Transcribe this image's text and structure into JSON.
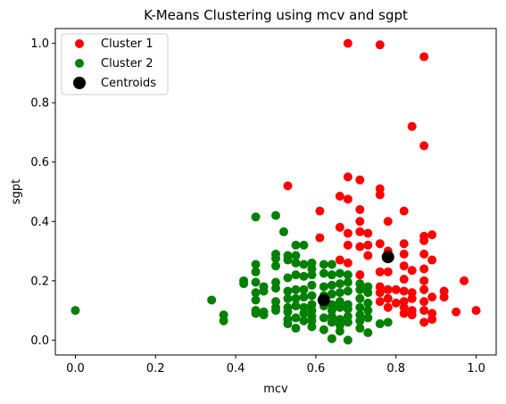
{
  "chart_data": {
    "type": "scatter",
    "title": "K-Means Clustering using mcv and sgpt",
    "xlabel": "mcv",
    "ylabel": "sgpt",
    "xlim": [
      -0.05,
      1.05
    ],
    "ylim": [
      -0.05,
      1.05
    ],
    "xticks": [
      0.0,
      0.2,
      0.4,
      0.6,
      0.8,
      1.0
    ],
    "xtick_labels": [
      "0.0",
      "0.2",
      "0.4",
      "0.6",
      "0.8",
      "1.0"
    ],
    "yticks": [
      0.0,
      0.2,
      0.4,
      0.6,
      0.8,
      1.0
    ],
    "ytick_labels": [
      "0.0",
      "0.2",
      "0.4",
      "0.6",
      "0.8",
      "1.0"
    ],
    "grid": false,
    "legend_position": "top-left",
    "series": [
      {
        "name": "Cluster 1",
        "color": "#ff0000",
        "points": [
          [
            0.68,
            1.0
          ],
          [
            0.76,
            0.995
          ],
          [
            0.87,
            0.955
          ],
          [
            0.84,
            0.72
          ],
          [
            0.87,
            0.655
          ],
          [
            0.53,
            0.52
          ],
          [
            0.68,
            0.55
          ],
          [
            0.71,
            0.54
          ],
          [
            0.66,
            0.485
          ],
          [
            0.68,
            0.475
          ],
          [
            0.76,
            0.51
          ],
          [
            0.76,
            0.49
          ],
          [
            0.71,
            0.44
          ],
          [
            0.61,
            0.435
          ],
          [
            0.82,
            0.435
          ],
          [
            0.71,
            0.4
          ],
          [
            0.78,
            0.4
          ],
          [
            0.66,
            0.38
          ],
          [
            0.61,
            0.345
          ],
          [
            0.68,
            0.36
          ],
          [
            0.71,
            0.365
          ],
          [
            0.73,
            0.36
          ],
          [
            0.87,
            0.35
          ],
          [
            0.89,
            0.355
          ],
          [
            0.68,
            0.32
          ],
          [
            0.71,
            0.315
          ],
          [
            0.73,
            0.32
          ],
          [
            0.76,
            0.325
          ],
          [
            0.82,
            0.325
          ],
          [
            0.87,
            0.335
          ],
          [
            0.66,
            0.27
          ],
          [
            0.68,
            0.26
          ],
          [
            0.73,
            0.285
          ],
          [
            0.78,
            0.3
          ],
          [
            0.82,
            0.29
          ],
          [
            0.87,
            0.29
          ],
          [
            0.89,
            0.27
          ],
          [
            0.71,
            0.22
          ],
          [
            0.76,
            0.23
          ],
          [
            0.78,
            0.23
          ],
          [
            0.82,
            0.25
          ],
          [
            0.84,
            0.235
          ],
          [
            0.87,
            0.24
          ],
          [
            0.82,
            0.205
          ],
          [
            0.87,
            0.2
          ],
          [
            0.97,
            0.2
          ],
          [
            0.76,
            0.18
          ],
          [
            0.76,
            0.16
          ],
          [
            0.78,
            0.17
          ],
          [
            0.8,
            0.17
          ],
          [
            0.82,
            0.165
          ],
          [
            0.84,
            0.16
          ],
          [
            0.87,
            0.17
          ],
          [
            0.89,
            0.145
          ],
          [
            0.92,
            0.165
          ],
          [
            0.92,
            0.145
          ],
          [
            0.76,
            0.13
          ],
          [
            0.78,
            0.14
          ],
          [
            0.8,
            0.125
          ],
          [
            0.82,
            0.13
          ],
          [
            0.84,
            0.14
          ],
          [
            0.87,
            0.13
          ],
          [
            0.78,
            0.11
          ],
          [
            0.82,
            0.11
          ],
          [
            0.84,
            0.1
          ],
          [
            0.82,
            0.09
          ],
          [
            0.87,
            0.1
          ],
          [
            0.89,
            0.09
          ],
          [
            0.95,
            0.095
          ],
          [
            1.0,
            0.1
          ],
          [
            0.84,
            0.085
          ],
          [
            0.87,
            0.06
          ],
          [
            0.89,
            0.07
          ]
        ]
      },
      {
        "name": "Cluster 2",
        "color": "#008000",
        "points": [
          [
            0.0,
            0.1
          ],
          [
            0.34,
            0.135
          ],
          [
            0.37,
            0.085
          ],
          [
            0.37,
            0.065
          ],
          [
            0.45,
            0.415
          ],
          [
            0.5,
            0.42
          ],
          [
            0.52,
            0.365
          ],
          [
            0.55,
            0.32
          ],
          [
            0.57,
            0.32
          ],
          [
            0.5,
            0.29
          ],
          [
            0.5,
            0.275
          ],
          [
            0.53,
            0.285
          ],
          [
            0.53,
            0.27
          ],
          [
            0.55,
            0.285
          ],
          [
            0.45,
            0.255
          ],
          [
            0.45,
            0.23
          ],
          [
            0.5,
            0.25
          ],
          [
            0.55,
            0.26
          ],
          [
            0.57,
            0.255
          ],
          [
            0.59,
            0.26
          ],
          [
            0.59,
            0.24
          ],
          [
            0.62,
            0.255
          ],
          [
            0.64,
            0.255
          ],
          [
            0.42,
            0.2
          ],
          [
            0.42,
            0.19
          ],
          [
            0.45,
            0.195
          ],
          [
            0.47,
            0.18
          ],
          [
            0.5,
            0.195
          ],
          [
            0.53,
            0.21
          ],
          [
            0.55,
            0.22
          ],
          [
            0.57,
            0.215
          ],
          [
            0.59,
            0.22
          ],
          [
            0.62,
            0.225
          ],
          [
            0.64,
            0.22
          ],
          [
            0.66,
            0.225
          ],
          [
            0.68,
            0.22
          ],
          [
            0.45,
            0.16
          ],
          [
            0.47,
            0.165
          ],
          [
            0.5,
            0.175
          ],
          [
            0.53,
            0.165
          ],
          [
            0.55,
            0.17
          ],
          [
            0.57,
            0.17
          ],
          [
            0.59,
            0.185
          ],
          [
            0.62,
            0.18
          ],
          [
            0.64,
            0.185
          ],
          [
            0.66,
            0.19
          ],
          [
            0.68,
            0.195
          ],
          [
            0.71,
            0.19
          ],
          [
            0.45,
            0.135
          ],
          [
            0.5,
            0.13
          ],
          [
            0.53,
            0.14
          ],
          [
            0.55,
            0.14
          ],
          [
            0.57,
            0.145
          ],
          [
            0.59,
            0.15
          ],
          [
            0.62,
            0.15
          ],
          [
            0.64,
            0.155
          ],
          [
            0.66,
            0.16
          ],
          [
            0.68,
            0.165
          ],
          [
            0.71,
            0.17
          ],
          [
            0.73,
            0.16
          ],
          [
            0.73,
            0.18
          ],
          [
            0.45,
            0.1
          ],
          [
            0.45,
            0.09
          ],
          [
            0.47,
            0.095
          ],
          [
            0.47,
            0.085
          ],
          [
            0.5,
            0.11
          ],
          [
            0.5,
            0.1
          ],
          [
            0.53,
            0.11
          ],
          [
            0.53,
            0.095
          ],
          [
            0.55,
            0.115
          ],
          [
            0.57,
            0.11
          ],
          [
            0.57,
            0.09
          ],
          [
            0.59,
            0.12
          ],
          [
            0.59,
            0.1
          ],
          [
            0.62,
            0.115
          ],
          [
            0.64,
            0.12
          ],
          [
            0.64,
            0.1
          ],
          [
            0.66,
            0.13
          ],
          [
            0.66,
            0.11
          ],
          [
            0.68,
            0.12
          ],
          [
            0.68,
            0.105
          ],
          [
            0.71,
            0.14
          ],
          [
            0.71,
            0.11
          ],
          [
            0.73,
            0.125
          ],
          [
            0.73,
            0.1
          ],
          [
            0.53,
            0.07
          ],
          [
            0.53,
            0.055
          ],
          [
            0.55,
            0.075
          ],
          [
            0.57,
            0.065
          ],
          [
            0.59,
            0.08
          ],
          [
            0.59,
            0.065
          ],
          [
            0.62,
            0.075
          ],
          [
            0.64,
            0.08
          ],
          [
            0.64,
            0.06
          ],
          [
            0.66,
            0.07
          ],
          [
            0.66,
            0.05
          ],
          [
            0.68,
            0.08
          ],
          [
            0.68,
            0.06
          ],
          [
            0.71,
            0.085
          ],
          [
            0.71,
            0.065
          ],
          [
            0.73,
            0.075
          ],
          [
            0.76,
            0.055
          ],
          [
            0.78,
            0.06
          ],
          [
            0.55,
            0.04
          ],
          [
            0.59,
            0.045
          ],
          [
            0.62,
            0.035
          ],
          [
            0.64,
            0.005
          ],
          [
            0.66,
            0.03
          ],
          [
            0.68,
            0.0
          ],
          [
            0.71,
            0.04
          ],
          [
            0.73,
            0.025
          ]
        ]
      },
      {
        "name": "Centroids",
        "color": "#000000",
        "points": [
          [
            0.62,
            0.135
          ],
          [
            0.78,
            0.28
          ]
        ]
      }
    ]
  }
}
